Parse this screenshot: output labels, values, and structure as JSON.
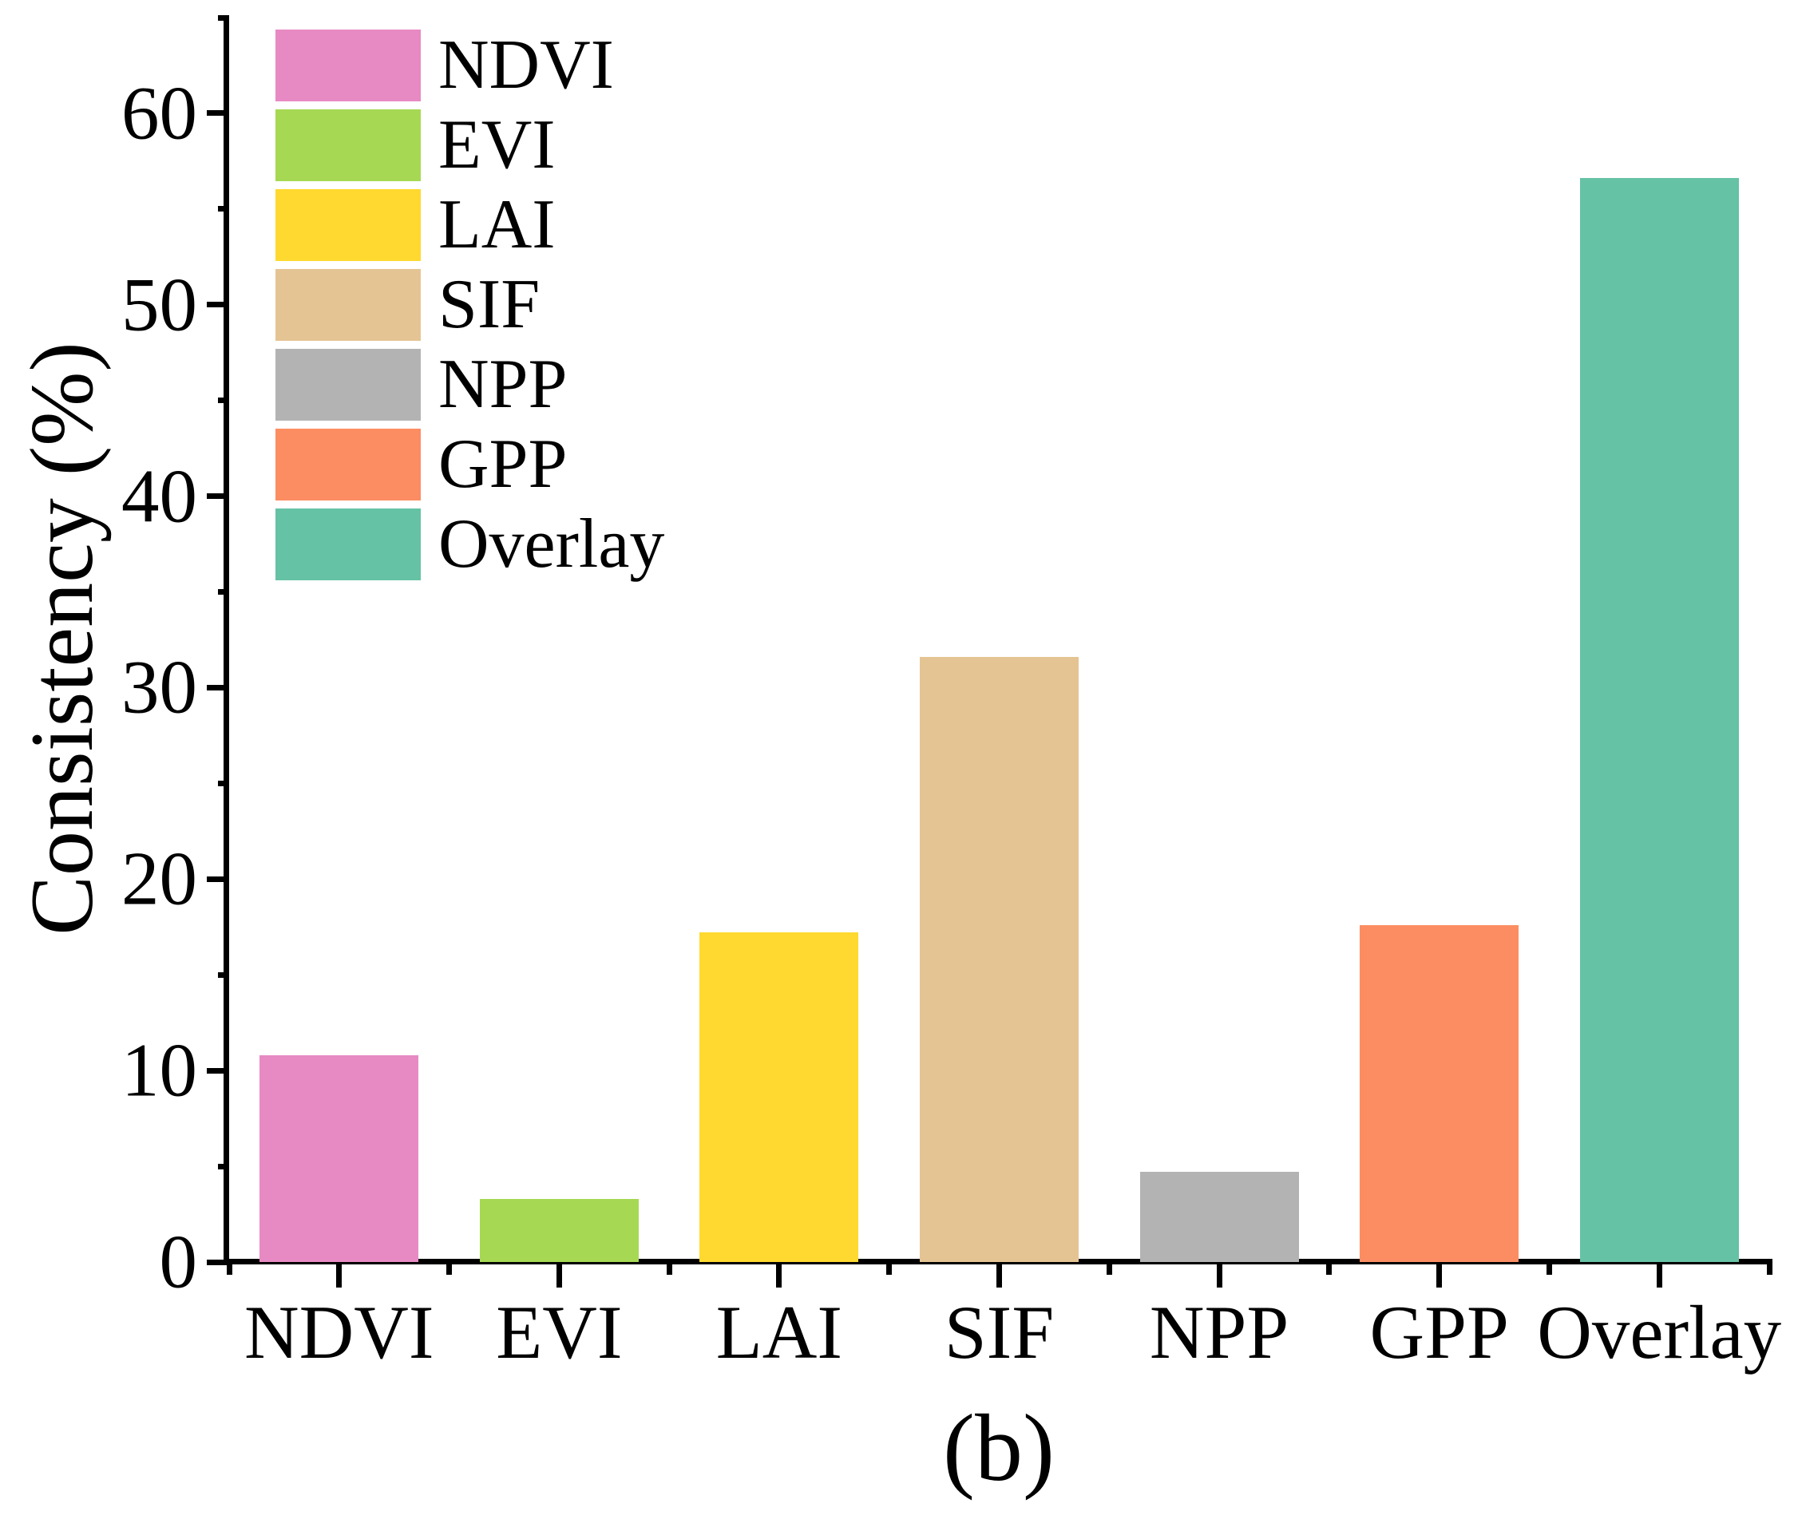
{
  "figure_label": "(b)",
  "background_color": "#FFFFFF",
  "text_color": "#000000",
  "axis_color": "#000000",
  "chart_data": {
    "type": "bar",
    "title": "",
    "xlabel": "",
    "ylabel": "Consistency (%)",
    "categories": [
      "NDVI",
      "EVI",
      "LAI",
      "SIF",
      "NPP",
      "GPP",
      "Overlay"
    ],
    "values": [
      10.8,
      3.3,
      17.2,
      31.6,
      4.7,
      17.6,
      56.6
    ],
    "bar_colors": [
      "#E78AC3",
      "#A6D854",
      "#FFD92F",
      "#E5C494",
      "#B3B3B3",
      "#FC8D62",
      "#66C2A5"
    ],
    "ylim": [
      0,
      65
    ],
    "yticks_major": [
      0,
      10,
      20,
      30,
      40,
      50,
      60
    ],
    "ytick_labels": [
      "0",
      "10",
      "20",
      "30",
      "40",
      "50",
      "60"
    ],
    "yticks_minor": [
      5,
      15,
      25,
      35,
      45,
      55,
      65
    ],
    "grid": false,
    "legend_position": "top-left",
    "legend": {
      "entries": [
        {
          "label": "NDVI",
          "color": "#E78AC3"
        },
        {
          "label": "EVI",
          "color": "#A6D854"
        },
        {
          "label": "LAI",
          "color": "#FFD92F"
        },
        {
          "label": "SIF",
          "color": "#E5C494"
        },
        {
          "label": "NPP",
          "color": "#B3B3B3"
        },
        {
          "label": "GPP",
          "color": "#FC8D62"
        },
        {
          "label": "Overlay",
          "color": "#66C2A5"
        }
      ]
    }
  }
}
